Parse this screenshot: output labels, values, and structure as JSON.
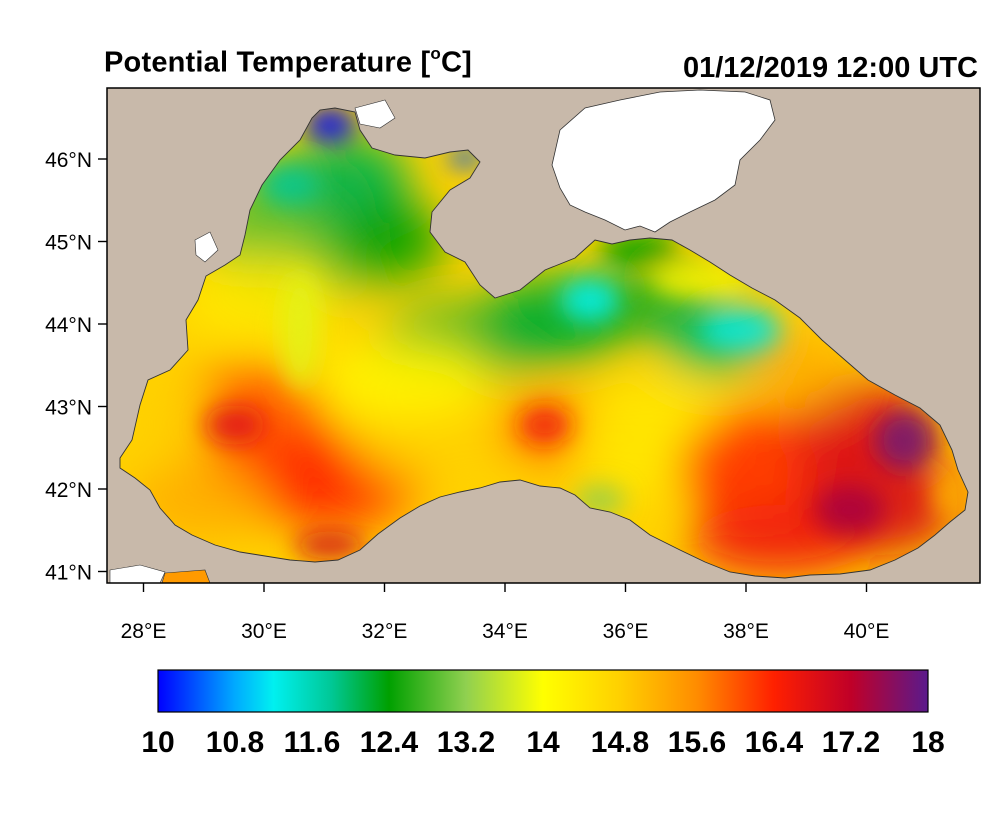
{
  "header": {
    "title_main": "Potential Temperature [",
    "title_degree": "o",
    "title_unit": "C]",
    "timestamp": "01/12/2019 12:00 UTC"
  },
  "map": {
    "lon_ticks": [
      "28°E",
      "30°E",
      "32°E",
      "34°E",
      "36°E",
      "38°E",
      "40°E"
    ],
    "lat_ticks": [
      "46°N",
      "45°N",
      "44°N",
      "43°N",
      "42°N",
      "41°N"
    ],
    "colors": {
      "land": "#c8b9aa",
      "lakes": "#ffffff",
      "frame": "#000000"
    }
  },
  "colorbar": {
    "labels": [
      "10",
      "10.8",
      "11.6",
      "12.4",
      "13.2",
      "14",
      "14.8",
      "15.6",
      "16.4",
      "17.2",
      "18"
    ],
    "min": 10,
    "max": 18,
    "stops": [
      {
        "value": 10.0,
        "color": "#0000ff"
      },
      {
        "value": 10.8,
        "color": "#00aaff"
      },
      {
        "value": 11.2,
        "color": "#00f0f0"
      },
      {
        "value": 11.8,
        "color": "#00c896"
      },
      {
        "value": 12.4,
        "color": "#00a000"
      },
      {
        "value": 13.2,
        "color": "#90d050"
      },
      {
        "value": 14.0,
        "color": "#ffff00"
      },
      {
        "value": 14.8,
        "color": "#ffd000"
      },
      {
        "value": 15.6,
        "color": "#ff8c00"
      },
      {
        "value": 16.4,
        "color": "#ff2000"
      },
      {
        "value": 17.2,
        "color": "#c00028"
      },
      {
        "value": 18.0,
        "color": "#5a1a8c"
      }
    ]
  }
}
